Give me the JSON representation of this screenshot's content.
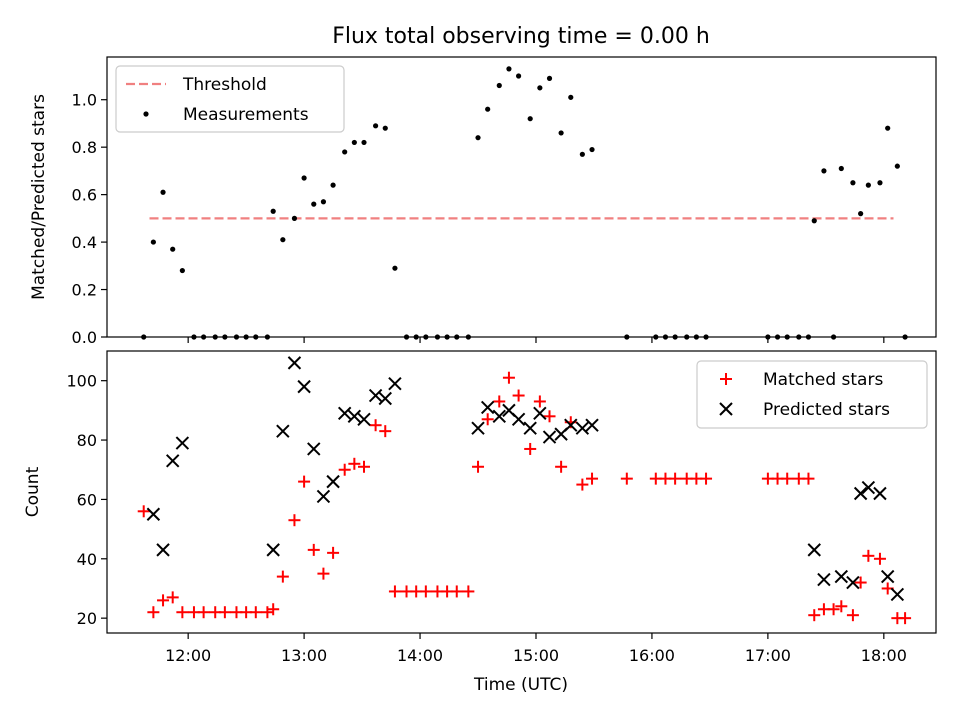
{
  "chart_data": [
    {
      "type": "scatter",
      "title": "Flux total observing time = 0.00 h",
      "xlabel": "",
      "ylabel": "Matched/Predicted stars",
      "xlim_hours": [
        11.3,
        18.45
      ],
      "ylim": [
        0,
        1.18
      ],
      "yticks": [
        0.0,
        0.2,
        0.4,
        0.6,
        0.8,
        1.0
      ],
      "ytick_labels": [
        "0.0",
        "0.2",
        "0.4",
        "0.6",
        "0.8",
        "1.0"
      ],
      "threshold": {
        "name": "Threshold",
        "value": 0.5,
        "x_range": [
          "11:40",
          "18:05"
        ],
        "color": "#f08080",
        "style": "dashed"
      },
      "legend_position": "upper-left",
      "series": [
        {
          "name": "Measurements",
          "marker": "dot",
          "color": "#000000",
          "points": [
            [
              "11:37",
              0.0
            ],
            [
              "11:42",
              0.4
            ],
            [
              "11:47",
              0.61
            ],
            [
              "11:52",
              0.37
            ],
            [
              "11:57",
              0.28
            ],
            [
              "12:03",
              0.0
            ],
            [
              "12:08",
              0.0
            ],
            [
              "12:14",
              0.0
            ],
            [
              "12:19",
              0.0
            ],
            [
              "12:25",
              0.0
            ],
            [
              "12:30",
              0.0
            ],
            [
              "12:35",
              0.0
            ],
            [
              "12:41",
              0.0
            ],
            [
              "12:44",
              0.53
            ],
            [
              "12:49",
              0.41
            ],
            [
              "12:55",
              0.5
            ],
            [
              "13:00",
              0.67
            ],
            [
              "13:05",
              0.56
            ],
            [
              "13:10",
              0.57
            ],
            [
              "13:15",
              0.64
            ],
            [
              "13:21",
              0.78
            ],
            [
              "13:26",
              0.82
            ],
            [
              "13:31",
              0.82
            ],
            [
              "13:37",
              0.89
            ],
            [
              "13:42",
              0.88
            ],
            [
              "13:47",
              0.29
            ],
            [
              "13:53",
              0.0
            ],
            [
              "13:58",
              0.0
            ],
            [
              "14:03",
              0.0
            ],
            [
              "14:09",
              0.0
            ],
            [
              "14:14",
              0.0
            ],
            [
              "14:19",
              0.0
            ],
            [
              "14:25",
              0.0
            ],
            [
              "14:30",
              0.84
            ],
            [
              "14:35",
              0.96
            ],
            [
              "14:41",
              1.06
            ],
            [
              "14:46",
              1.13
            ],
            [
              "14:51",
              1.1
            ],
            [
              "14:57",
              0.92
            ],
            [
              "15:02",
              1.05
            ],
            [
              "15:07",
              1.09
            ],
            [
              "15:13",
              0.86
            ],
            [
              "15:18",
              1.01
            ],
            [
              "15:24",
              0.77
            ],
            [
              "15:29",
              0.79
            ],
            [
              "15:47",
              0.0
            ],
            [
              "16:02",
              0.0
            ],
            [
              "16:07",
              0.0
            ],
            [
              "16:12",
              0.0
            ],
            [
              "16:18",
              0.0
            ],
            [
              "16:23",
              0.0
            ],
            [
              "16:28",
              0.0
            ],
            [
              "17:00",
              0.0
            ],
            [
              "17:05",
              0.0
            ],
            [
              "17:10",
              0.0
            ],
            [
              "17:16",
              0.0
            ],
            [
              "17:21",
              0.0
            ],
            [
              "17:24",
              0.49
            ],
            [
              "17:29",
              0.7
            ],
            [
              "17:34",
              0.0
            ],
            [
              "17:38",
              0.71
            ],
            [
              "17:44",
              0.65
            ],
            [
              "17:48",
              0.52
            ],
            [
              "17:52",
              0.64
            ],
            [
              "17:58",
              0.65
            ],
            [
              "18:02",
              0.88
            ],
            [
              "18:07",
              0.72
            ],
            [
              "18:11",
              0.0
            ]
          ]
        }
      ]
    },
    {
      "type": "scatter",
      "title": "",
      "xlabel": "Time (UTC)",
      "ylabel": "Count",
      "xlim_hours": [
        11.3,
        18.45
      ],
      "ylim": [
        15,
        110
      ],
      "xticks": [
        "12:00",
        "13:00",
        "14:00",
        "15:00",
        "16:00",
        "17:00",
        "18:00"
      ],
      "yticks": [
        20,
        40,
        60,
        80,
        100
      ],
      "ytick_labels": [
        "20",
        "40",
        "60",
        "80",
        "100"
      ],
      "legend_position": "upper-right",
      "series": [
        {
          "name": "Matched stars",
          "marker": "plus",
          "color": "#ff0000",
          "points": [
            [
              "11:37",
              56
            ],
            [
              "11:42",
              22
            ],
            [
              "11:47",
              26
            ],
            [
              "11:52",
              27
            ],
            [
              "11:57",
              22
            ],
            [
              "12:03",
              22
            ],
            [
              "12:08",
              22
            ],
            [
              "12:14",
              22
            ],
            [
              "12:19",
              22
            ],
            [
              "12:25",
              22
            ],
            [
              "12:30",
              22
            ],
            [
              "12:35",
              22
            ],
            [
              "12:41",
              22
            ],
            [
              "12:44",
              23
            ],
            [
              "12:49",
              34
            ],
            [
              "12:55",
              53
            ],
            [
              "13:00",
              66
            ],
            [
              "13:05",
              43
            ],
            [
              "13:10",
              35
            ],
            [
              "13:15",
              42
            ],
            [
              "13:21",
              70
            ],
            [
              "13:26",
              72
            ],
            [
              "13:31",
              71
            ],
            [
              "13:37",
              85
            ],
            [
              "13:42",
              83
            ],
            [
              "13:47",
              29
            ],
            [
              "13:53",
              29
            ],
            [
              "13:58",
              29
            ],
            [
              "14:03",
              29
            ],
            [
              "14:09",
              29
            ],
            [
              "14:14",
              29
            ],
            [
              "14:19",
              29
            ],
            [
              "14:25",
              29
            ],
            [
              "14:30",
              71
            ],
            [
              "14:35",
              87
            ],
            [
              "14:41",
              93
            ],
            [
              "14:46",
              101
            ],
            [
              "14:51",
              95
            ],
            [
              "14:57",
              77
            ],
            [
              "15:02",
              93
            ],
            [
              "15:07",
              88
            ],
            [
              "15:13",
              71
            ],
            [
              "15:18",
              86
            ],
            [
              "15:24",
              65
            ],
            [
              "15:29",
              67
            ],
            [
              "15:47",
              67
            ],
            [
              "16:02",
              67
            ],
            [
              "16:07",
              67
            ],
            [
              "16:12",
              67
            ],
            [
              "16:18",
              67
            ],
            [
              "16:23",
              67
            ],
            [
              "16:28",
              67
            ],
            [
              "17:00",
              67
            ],
            [
              "17:05",
              67
            ],
            [
              "17:10",
              67
            ],
            [
              "17:16",
              67
            ],
            [
              "17:21",
              67
            ],
            [
              "17:24",
              21
            ],
            [
              "17:29",
              23
            ],
            [
              "17:34",
              23
            ],
            [
              "17:38",
              24
            ],
            [
              "17:44",
              21
            ],
            [
              "17:48",
              32
            ],
            [
              "17:52",
              41
            ],
            [
              "17:58",
              40
            ],
            [
              "18:02",
              30
            ],
            [
              "18:07",
              20
            ],
            [
              "18:11",
              20
            ]
          ]
        },
        {
          "name": "Predicted stars",
          "marker": "x",
          "color": "#000000",
          "points": [
            [
              "11:42",
              55
            ],
            [
              "11:47",
              43
            ],
            [
              "11:52",
              73
            ],
            [
              "11:57",
              79
            ],
            [
              "12:44",
              43
            ],
            [
              "12:49",
              83
            ],
            [
              "12:55",
              106
            ],
            [
              "13:00",
              98
            ],
            [
              "13:05",
              77
            ],
            [
              "13:10",
              61
            ],
            [
              "13:15",
              66
            ],
            [
              "13:21",
              89
            ],
            [
              "13:26",
              88
            ],
            [
              "13:31",
              87
            ],
            [
              "13:37",
              95
            ],
            [
              "13:42",
              94
            ],
            [
              "13:47",
              99
            ],
            [
              "14:30",
              84
            ],
            [
              "14:35",
              91
            ],
            [
              "14:41",
              88
            ],
            [
              "14:46",
              90
            ],
            [
              "14:51",
              87
            ],
            [
              "14:57",
              84
            ],
            [
              "15:02",
              89
            ],
            [
              "15:07",
              81
            ],
            [
              "15:13",
              82
            ],
            [
              "15:18",
              85
            ],
            [
              "15:24",
              84
            ],
            [
              "15:29",
              85
            ],
            [
              "17:24",
              43
            ],
            [
              "17:29",
              33
            ],
            [
              "17:38",
              34
            ],
            [
              "17:44",
              32
            ],
            [
              "17:48",
              62
            ],
            [
              "17:52",
              64
            ],
            [
              "17:58",
              62
            ],
            [
              "18:02",
              34
            ],
            [
              "18:07",
              28
            ]
          ]
        }
      ]
    }
  ]
}
